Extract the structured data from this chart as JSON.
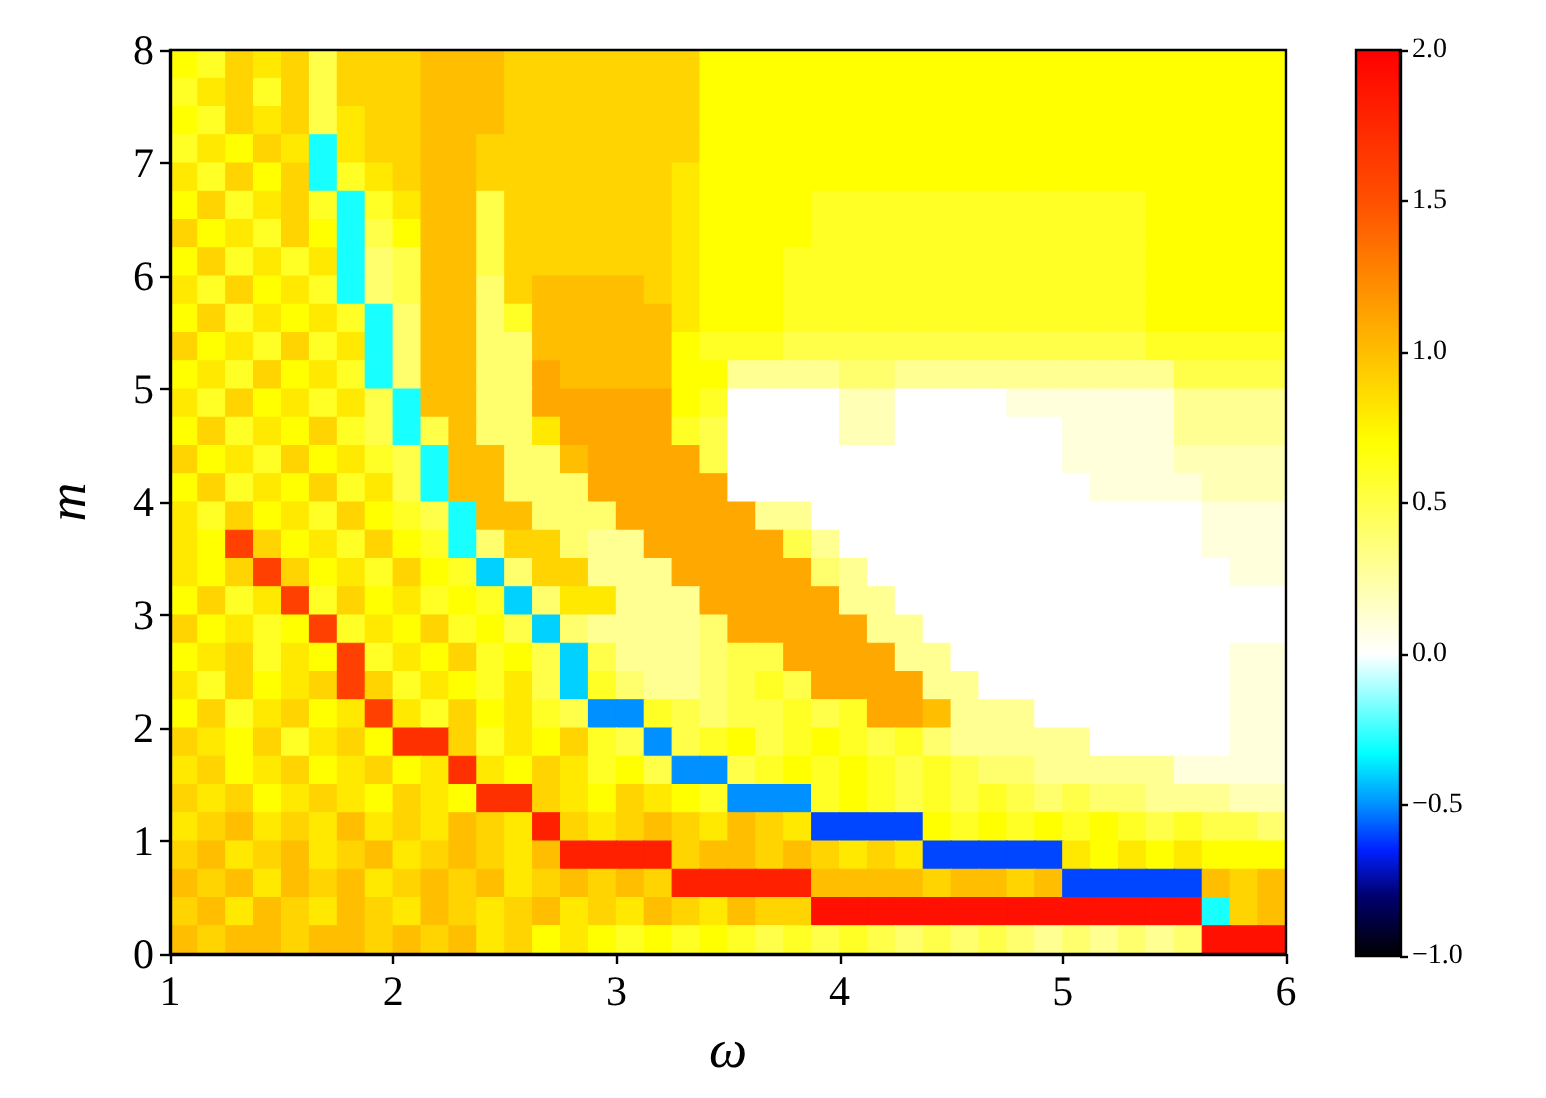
{
  "chart_data": {
    "type": "heatmap",
    "xlabel": "ω",
    "ylabel": "m",
    "x": [
      1.0625,
      1.1875,
      1.3125,
      1.4375,
      1.5625,
      1.6875,
      1.8125,
      1.9375,
      2.0625,
      2.1875,
      2.3125,
      2.4375,
      2.5625,
      2.6875,
      2.8125,
      2.9375,
      3.0625,
      3.1875,
      3.3125,
      3.4375,
      3.5625,
      3.6875,
      3.8125,
      3.9375,
      4.0625,
      4.1875,
      4.3125,
      4.4375,
      4.5625,
      4.6875,
      4.8125,
      4.9375,
      5.0625,
      5.1875,
      5.3125,
      5.4375,
      5.5625,
      5.6875,
      5.8125,
      5.9375
    ],
    "y": [
      7.875,
      7.625,
      7.375,
      7.125,
      6.875,
      6.625,
      6.375,
      6.125,
      5.875,
      5.625,
      5.375,
      5.125,
      4.875,
      4.625,
      4.375,
      4.125,
      3.875,
      3.625,
      3.375,
      3.125,
      2.875,
      2.625,
      2.375,
      2.125,
      1.875,
      1.625,
      1.375,
      1.125,
      0.875,
      0.625,
      0.375,
      0.125
    ],
    "cells": [
      [
        0.7,
        0.6,
        0.9,
        0.8,
        0.9,
        0.5,
        0.9,
        0.9,
        0.9,
        1.0,
        1.0,
        1.0,
        0.9,
        0.9,
        0.9,
        0.9,
        0.9,
        0.9,
        0.9,
        0.7,
        0.7,
        0.7,
        0.7,
        0.7,
        0.7,
        0.7,
        0.7,
        0.7,
        0.7,
        0.7,
        0.7,
        0.7,
        0.7,
        0.7,
        0.7,
        0.7,
        0.7,
        0.7,
        0.7,
        0.7
      ],
      [
        0.6,
        0.8,
        0.9,
        0.6,
        0.9,
        0.5,
        0.9,
        0.9,
        0.9,
        1.0,
        1.0,
        1.0,
        0.9,
        0.9,
        0.9,
        0.9,
        0.9,
        0.9,
        0.9,
        0.7,
        0.7,
        0.7,
        0.7,
        0.7,
        0.7,
        0.7,
        0.7,
        0.7,
        0.7,
        0.7,
        0.7,
        0.7,
        0.7,
        0.7,
        0.7,
        0.7,
        0.7,
        0.7,
        0.7,
        0.7
      ],
      [
        0.7,
        0.6,
        0.9,
        0.8,
        0.9,
        0.5,
        0.8,
        0.9,
        0.9,
        1.0,
        1.0,
        1.0,
        0.9,
        0.9,
        0.9,
        0.9,
        0.9,
        0.9,
        0.9,
        0.7,
        0.7,
        0.7,
        0.7,
        0.7,
        0.7,
        0.7,
        0.7,
        0.7,
        0.7,
        0.7,
        0.7,
        0.7,
        0.7,
        0.7,
        0.7,
        0.7,
        0.7,
        0.7,
        0.7,
        0.7
      ],
      [
        0.6,
        0.8,
        0.7,
        0.9,
        0.8,
        -0.3,
        0.8,
        0.9,
        0.9,
        1.0,
        1.0,
        0.9,
        0.9,
        0.9,
        0.9,
        0.9,
        0.9,
        0.9,
        0.9,
        0.7,
        0.7,
        0.7,
        0.7,
        0.7,
        0.7,
        0.7,
        0.7,
        0.7,
        0.7,
        0.7,
        0.7,
        0.7,
        0.7,
        0.7,
        0.7,
        0.7,
        0.7,
        0.7,
        0.7,
        0.7
      ],
      [
        0.8,
        0.6,
        0.9,
        0.7,
        0.9,
        -0.3,
        0.6,
        0.8,
        0.9,
        1.0,
        1.0,
        0.9,
        0.9,
        0.9,
        0.9,
        0.9,
        0.9,
        0.9,
        0.8,
        0.7,
        0.7,
        0.7,
        0.7,
        0.7,
        0.7,
        0.7,
        0.7,
        0.7,
        0.7,
        0.7,
        0.7,
        0.7,
        0.7,
        0.7,
        0.7,
        0.7,
        0.7,
        0.7,
        0.7,
        0.7
      ],
      [
        0.7,
        0.9,
        0.6,
        0.8,
        0.9,
        0.6,
        -0.3,
        0.6,
        0.8,
        1.0,
        1.0,
        0.5,
        0.9,
        0.9,
        0.9,
        0.9,
        0.9,
        0.9,
        0.8,
        0.7,
        0.7,
        0.7,
        0.7,
        0.6,
        0.6,
        0.6,
        0.6,
        0.6,
        0.6,
        0.6,
        0.6,
        0.6,
        0.6,
        0.6,
        0.6,
        0.7,
        0.7,
        0.7,
        0.7,
        0.7
      ],
      [
        0.9,
        0.7,
        0.8,
        0.6,
        0.9,
        0.7,
        -0.3,
        0.5,
        0.7,
        1.0,
        1.0,
        0.5,
        0.9,
        0.9,
        0.9,
        0.9,
        0.9,
        0.9,
        0.8,
        0.7,
        0.7,
        0.7,
        0.7,
        0.6,
        0.6,
        0.6,
        0.6,
        0.6,
        0.6,
        0.6,
        0.6,
        0.6,
        0.6,
        0.6,
        0.6,
        0.7,
        0.7,
        0.7,
        0.7,
        0.7
      ],
      [
        0.7,
        0.9,
        0.6,
        0.8,
        0.6,
        0.8,
        -0.3,
        0.4,
        0.5,
        1.0,
        1.0,
        0.5,
        0.9,
        0.9,
        0.9,
        0.9,
        0.9,
        0.9,
        0.8,
        0.7,
        0.7,
        0.7,
        0.6,
        0.6,
        0.6,
        0.6,
        0.6,
        0.6,
        0.6,
        0.6,
        0.6,
        0.6,
        0.6,
        0.6,
        0.6,
        0.7,
        0.7,
        0.7,
        0.7,
        0.7
      ],
      [
        0.8,
        0.6,
        0.9,
        0.7,
        0.8,
        0.6,
        -0.3,
        0.4,
        0.5,
        1.0,
        1.0,
        0.4,
        0.9,
        1.0,
        1.0,
        1.0,
        1.0,
        0.9,
        0.8,
        0.7,
        0.7,
        0.7,
        0.6,
        0.6,
        0.6,
        0.6,
        0.6,
        0.6,
        0.6,
        0.6,
        0.6,
        0.6,
        0.6,
        0.6,
        0.6,
        0.7,
        0.7,
        0.7,
        0.7,
        0.7
      ],
      [
        0.7,
        0.9,
        0.6,
        0.8,
        0.7,
        0.8,
        0.6,
        -0.3,
        0.4,
        1.0,
        1.0,
        0.4,
        0.6,
        1.0,
        1.0,
        1.0,
        1.0,
        1.0,
        0.8,
        0.7,
        0.7,
        0.7,
        0.6,
        0.6,
        0.6,
        0.6,
        0.6,
        0.6,
        0.6,
        0.6,
        0.6,
        0.6,
        0.6,
        0.6,
        0.6,
        0.7,
        0.7,
        0.7,
        0.7,
        0.7
      ],
      [
        0.9,
        0.7,
        0.8,
        0.6,
        0.9,
        0.6,
        0.8,
        -0.3,
        0.4,
        1.0,
        1.0,
        0.4,
        0.4,
        1.0,
        1.0,
        1.0,
        1.0,
        1.0,
        0.7,
        0.6,
        0.6,
        0.6,
        0.5,
        0.5,
        0.5,
        0.5,
        0.5,
        0.5,
        0.5,
        0.5,
        0.5,
        0.5,
        0.5,
        0.5,
        0.5,
        0.6,
        0.6,
        0.6,
        0.6,
        0.6
      ],
      [
        0.7,
        0.8,
        0.6,
        0.9,
        0.7,
        0.8,
        0.6,
        -0.3,
        0.4,
        1.0,
        1.0,
        0.4,
        0.4,
        1.1,
        1.0,
        1.0,
        1.0,
        1.0,
        0.7,
        0.7,
        0.3,
        0.3,
        0.3,
        0.3,
        0.4,
        0.4,
        0.3,
        0.3,
        0.3,
        0.3,
        0.3,
        0.3,
        0.3,
        0.3,
        0.3,
        0.3,
        0.5,
        0.5,
        0.5,
        0.5
      ],
      [
        0.8,
        0.6,
        0.9,
        0.7,
        0.8,
        0.6,
        0.8,
        0.5,
        -0.3,
        1.0,
        1.0,
        0.4,
        0.4,
        1.1,
        1.1,
        1.1,
        1.1,
        1.1,
        0.7,
        0.6,
        0.0,
        0.0,
        0.0,
        0.0,
        0.2,
        0.2,
        0.0,
        0.0,
        0.0,
        0.0,
        0.1,
        0.1,
        0.1,
        0.1,
        0.1,
        0.1,
        0.3,
        0.3,
        0.3,
        0.3
      ],
      [
        0.7,
        0.9,
        0.6,
        0.8,
        0.7,
        0.9,
        0.6,
        0.5,
        -0.3,
        0.5,
        1.0,
        0.4,
        0.4,
        0.8,
        1.1,
        1.1,
        1.1,
        1.1,
        0.6,
        0.5,
        0.0,
        0.0,
        0.0,
        0.0,
        0.2,
        0.2,
        0.0,
        0.0,
        0.0,
        0.0,
        0.0,
        0.0,
        0.1,
        0.1,
        0.1,
        0.1,
        0.3,
        0.3,
        0.3,
        0.3
      ],
      [
        0.9,
        0.7,
        0.8,
        0.6,
        0.9,
        0.7,
        0.8,
        0.6,
        0.5,
        -0.3,
        1.0,
        1.0,
        0.4,
        0.4,
        1.0,
        1.1,
        1.1,
        1.1,
        1.1,
        0.5,
        0.0,
        0.0,
        0.0,
        0.0,
        0.0,
        0.0,
        0.0,
        0.0,
        0.0,
        0.0,
        0.0,
        0.0,
        0.1,
        0.1,
        0.1,
        0.1,
        0.2,
        0.2,
        0.2,
        0.2
      ],
      [
        0.7,
        0.9,
        0.6,
        0.8,
        0.7,
        0.9,
        0.6,
        0.8,
        0.5,
        -0.3,
        1.0,
        1.0,
        0.4,
        0.4,
        0.4,
        1.1,
        1.1,
        1.1,
        1.1,
        1.1,
        0.0,
        0.0,
        0.0,
        0.0,
        0.0,
        0.0,
        0.0,
        0.0,
        0.0,
        0.0,
        0.0,
        0.0,
        0.0,
        0.1,
        0.1,
        0.1,
        0.1,
        0.2,
        0.2,
        0.2
      ],
      [
        0.8,
        0.6,
        0.9,
        0.7,
        0.8,
        0.6,
        0.9,
        0.7,
        0.6,
        0.5,
        -0.3,
        1.0,
        1.0,
        0.4,
        0.4,
        0.4,
        1.1,
        1.1,
        1.1,
        1.1,
        1.1,
        0.3,
        0.3,
        0.0,
        0.0,
        0.0,
        0.0,
        0.0,
        0.0,
        0.0,
        0.0,
        0.0,
        0.0,
        0.0,
        0.0,
        0.0,
        0.0,
        0.1,
        0.1,
        0.1
      ],
      [
        0.8,
        0.7,
        1.6,
        0.9,
        0.7,
        0.8,
        0.6,
        0.9,
        0.7,
        0.6,
        -0.3,
        0.4,
        0.9,
        0.9,
        0.4,
        0.3,
        0.3,
        1.1,
        1.1,
        1.1,
        1.1,
        1.1,
        0.5,
        0.3,
        0.0,
        0.0,
        0.0,
        0.0,
        0.0,
        0.0,
        0.0,
        0.0,
        0.0,
        0.0,
        0.0,
        0.0,
        0.0,
        0.1,
        0.1,
        0.1
      ],
      [
        0.8,
        0.7,
        0.9,
        1.6,
        0.9,
        0.7,
        0.8,
        0.6,
        0.9,
        0.7,
        0.6,
        -0.4,
        0.4,
        0.9,
        0.9,
        0.3,
        0.3,
        0.3,
        1.1,
        1.1,
        1.1,
        1.1,
        1.1,
        0.4,
        0.3,
        0.0,
        0.0,
        0.0,
        0.0,
        0.0,
        0.0,
        0.0,
        0.0,
        0.0,
        0.0,
        0.0,
        0.0,
        0.0,
        0.1,
        0.1
      ],
      [
        0.7,
        0.9,
        0.6,
        0.8,
        1.6,
        0.6,
        0.9,
        0.7,
        0.8,
        0.6,
        0.7,
        0.6,
        -0.4,
        0.4,
        0.8,
        0.8,
        0.3,
        0.3,
        0.3,
        1.1,
        1.1,
        1.1,
        1.1,
        1.1,
        0.3,
        0.3,
        0.0,
        0.0,
        0.0,
        0.0,
        0.0,
        0.0,
        0.0,
        0.0,
        0.0,
        0.0,
        0.0,
        0.0,
        0.0,
        0.0
      ],
      [
        0.9,
        0.7,
        0.8,
        0.6,
        0.7,
        1.6,
        0.6,
        0.8,
        0.7,
        0.9,
        0.6,
        0.7,
        0.5,
        -0.4,
        0.4,
        0.3,
        0.3,
        0.3,
        0.3,
        0.4,
        1.1,
        1.1,
        1.1,
        1.1,
        1.1,
        0.3,
        0.3,
        0.0,
        0.0,
        0.0,
        0.0,
        0.0,
        0.0,
        0.0,
        0.0,
        0.0,
        0.0,
        0.0,
        0.0,
        0.0
      ],
      [
        0.7,
        0.8,
        0.9,
        0.6,
        0.8,
        0.7,
        1.6,
        0.6,
        0.8,
        0.7,
        0.9,
        0.6,
        0.7,
        0.5,
        -0.4,
        0.5,
        0.3,
        0.3,
        0.3,
        0.4,
        0.5,
        0.5,
        1.1,
        1.1,
        1.1,
        1.1,
        0.3,
        0.3,
        0.0,
        0.0,
        0.0,
        0.0,
        0.0,
        0.0,
        0.0,
        0.0,
        0.0,
        0.0,
        0.1,
        0.1
      ],
      [
        0.8,
        0.6,
        0.9,
        0.7,
        0.8,
        0.9,
        1.6,
        0.9,
        0.6,
        0.8,
        0.7,
        0.6,
        0.8,
        0.5,
        -0.4,
        0.6,
        0.4,
        0.3,
        0.3,
        0.4,
        0.5,
        0.6,
        0.5,
        1.1,
        1.1,
        1.1,
        1.1,
        0.3,
        0.3,
        0.0,
        0.0,
        0.0,
        0.0,
        0.0,
        0.0,
        0.0,
        0.0,
        0.0,
        0.1,
        0.1
      ],
      [
        0.7,
        0.9,
        0.6,
        0.8,
        0.9,
        0.7,
        0.8,
        1.6,
        0.8,
        0.6,
        0.9,
        0.7,
        0.8,
        0.6,
        0.5,
        -0.5,
        -0.5,
        0.6,
        0.5,
        0.4,
        0.5,
        0.5,
        0.6,
        0.5,
        0.6,
        1.1,
        1.1,
        1.0,
        0.3,
        0.3,
        0.3,
        0.0,
        0.0,
        0.0,
        0.0,
        0.0,
        0.0,
        0.0,
        0.1,
        0.1
      ],
      [
        0.9,
        0.8,
        0.7,
        0.9,
        0.6,
        0.8,
        0.9,
        0.7,
        1.7,
        1.7,
        0.9,
        0.6,
        0.8,
        0.7,
        0.9,
        0.6,
        0.5,
        -0.5,
        0.5,
        0.6,
        0.7,
        0.5,
        0.6,
        0.7,
        0.6,
        0.5,
        0.6,
        0.4,
        0.3,
        0.3,
        0.3,
        0.3,
        0.3,
        0.0,
        0.0,
        0.0,
        0.0,
        0.0,
        0.1,
        0.1
      ],
      [
        0.8,
        0.9,
        0.7,
        0.8,
        0.9,
        0.7,
        0.8,
        0.9,
        0.7,
        0.8,
        1.7,
        0.8,
        0.7,
        0.9,
        0.8,
        0.6,
        0.7,
        0.5,
        -0.5,
        -0.5,
        0.5,
        0.6,
        0.7,
        0.6,
        0.7,
        0.6,
        0.5,
        0.6,
        0.5,
        0.4,
        0.4,
        0.3,
        0.3,
        0.3,
        0.3,
        0.3,
        0.1,
        0.1,
        0.1,
        0.1
      ],
      [
        0.9,
        0.8,
        0.9,
        0.7,
        0.8,
        0.9,
        0.8,
        0.7,
        0.9,
        0.8,
        0.7,
        1.7,
        1.7,
        0.9,
        0.8,
        0.7,
        0.9,
        0.8,
        0.7,
        0.6,
        -0.5,
        -0.5,
        -0.5,
        0.6,
        0.7,
        0.6,
        0.5,
        0.6,
        0.5,
        0.6,
        0.5,
        0.4,
        0.5,
        0.4,
        0.4,
        0.3,
        0.3,
        0.3,
        0.2,
        0.2
      ],
      [
        0.8,
        0.9,
        1.0,
        0.8,
        0.9,
        0.8,
        1.0,
        0.8,
        0.9,
        0.8,
        1.0,
        0.9,
        0.8,
        1.8,
        0.9,
        0.8,
        0.9,
        1.0,
        0.9,
        0.8,
        1.0,
        0.9,
        0.8,
        -0.6,
        -0.6,
        -0.6,
        -0.6,
        0.7,
        0.6,
        0.7,
        0.6,
        0.7,
        0.6,
        0.7,
        0.6,
        0.5,
        0.6,
        0.5,
        0.5,
        0.4
      ],
      [
        0.9,
        1.0,
        0.8,
        0.9,
        1.0,
        0.8,
        0.9,
        1.0,
        0.8,
        0.9,
        1.0,
        0.9,
        0.8,
        1.0,
        1.8,
        1.8,
        1.8,
        1.8,
        0.9,
        1.0,
        1.0,
        0.9,
        1.0,
        0.9,
        0.8,
        0.9,
        0.8,
        -0.6,
        -0.6,
        -0.6,
        -0.6,
        -0.6,
        0.8,
        0.7,
        0.8,
        0.7,
        0.8,
        0.7,
        0.7,
        0.7
      ],
      [
        1.0,
        0.9,
        1.0,
        0.8,
        1.0,
        0.9,
        1.0,
        0.8,
        0.9,
        1.0,
        0.9,
        1.0,
        0.8,
        0.9,
        1.0,
        0.9,
        1.0,
        0.9,
        1.8,
        1.8,
        1.8,
        1.8,
        1.8,
        1.0,
        1.0,
        1.0,
        1.0,
        0.9,
        1.0,
        1.0,
        0.9,
        1.0,
        -0.6,
        -0.6,
        -0.6,
        -0.6,
        -0.6,
        1.0,
        0.9,
        1.0
      ],
      [
        0.9,
        1.0,
        0.8,
        1.0,
        0.9,
        0.8,
        1.0,
        0.9,
        0.8,
        1.0,
        0.9,
        0.8,
        0.9,
        1.0,
        0.8,
        0.9,
        0.8,
        1.0,
        0.9,
        0.8,
        1.0,
        0.9,
        0.9,
        1.9,
        1.9,
        1.9,
        1.9,
        1.9,
        1.9,
        1.9,
        1.9,
        1.9,
        1.9,
        1.9,
        1.9,
        1.9,
        1.9,
        -0.3,
        0.9,
        1.0
      ],
      [
        1.0,
        0.9,
        1.0,
        1.0,
        0.9,
        1.0,
        1.0,
        0.9,
        1.0,
        0.9,
        1.0,
        0.8,
        0.9,
        0.7,
        0.8,
        0.7,
        0.6,
        0.7,
        0.6,
        0.7,
        0.6,
        0.5,
        0.6,
        0.5,
        0.6,
        0.5,
        0.4,
        0.5,
        0.4,
        0.5,
        0.4,
        0.3,
        0.4,
        0.3,
        0.4,
        0.3,
        0.4,
        1.9,
        1.9,
        1.9
      ]
    ],
    "xlim": [
      1,
      6
    ],
    "xticks": [
      1,
      2,
      3,
      4,
      5,
      6
    ],
    "ylim": [
      0,
      8
    ],
    "yticks": [
      0,
      1,
      2,
      3,
      4,
      5,
      6,
      7,
      8
    ],
    "clim": [
      -1,
      2
    ],
    "cticks": [
      {
        "value": -1,
        "label": "−1.0"
      },
      {
        "value": -0.5,
        "label": "−0.5"
      },
      {
        "value": 0,
        "label": "0.0"
      },
      {
        "value": 0.5,
        "label": "0.5"
      },
      {
        "value": 1,
        "label": "1.0"
      },
      {
        "value": 1.5,
        "label": "1.5"
      },
      {
        "value": 2,
        "label": "2.0"
      }
    ]
  }
}
